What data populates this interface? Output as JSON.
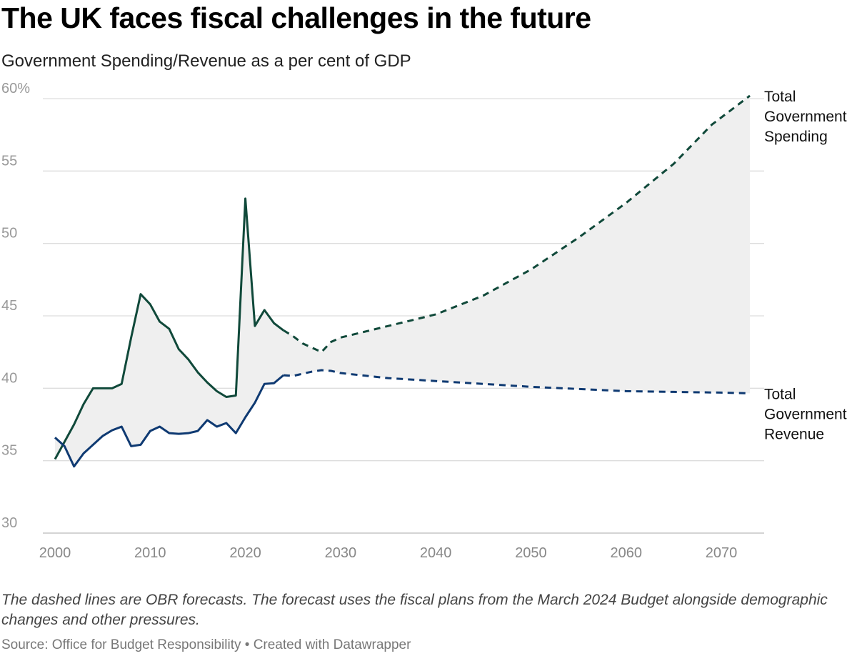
{
  "chart_data": {
    "type": "line",
    "title": "The UK faces fiscal challenges in the future",
    "subtitle": "Government Spending/Revenue as a per cent of GDP",
    "xlabel": "",
    "ylabel": "",
    "xlim": [
      2000,
      2073
    ],
    "ylim": [
      30,
      60
    ],
    "x_ticks": [
      "2000",
      "2010",
      "2020",
      "2030",
      "2040",
      "2050",
      "2060",
      "2070"
    ],
    "y_ticks": [
      "60%",
      "55",
      "50",
      "45",
      "40",
      "35",
      "30"
    ],
    "grid": true,
    "forecast_from": 2024,
    "colors": {
      "spending": "#10493a",
      "revenue": "#0f3a72",
      "fill": "#efefef",
      "grid": "#dddddd"
    },
    "series": [
      {
        "name": "Total Government Spending",
        "label_lines": [
          "Total",
          "Government",
          "Spending"
        ],
        "x": [
          2000,
          2001,
          2002,
          2003,
          2004,
          2005,
          2006,
          2007,
          2008,
          2009,
          2010,
          2011,
          2012,
          2013,
          2014,
          2015,
          2016,
          2017,
          2018,
          2019,
          2020,
          2021,
          2022,
          2023,
          2024,
          2025,
          2026,
          2027,
          2028,
          2029,
          2030,
          2035,
          2040,
          2045,
          2050,
          2055,
          2060,
          2065,
          2069,
          2073
        ],
        "values": [
          35.1,
          36.3,
          37.5,
          38.9,
          40.0,
          40.0,
          40.0,
          40.3,
          43.5,
          46.5,
          45.8,
          44.6,
          44.1,
          42.7,
          42.0,
          41.1,
          40.4,
          39.8,
          39.4,
          39.5,
          53.1,
          44.3,
          45.4,
          44.5,
          44.0,
          43.6,
          43.1,
          42.8,
          42.5,
          43.2,
          43.5,
          44.3,
          45.1,
          46.4,
          48.2,
          50.4,
          52.8,
          55.5,
          58.2,
          60.2
        ]
      },
      {
        "name": "Total Government Revenue",
        "label_lines": [
          "Total",
          "Government",
          "Revenue"
        ],
        "x": [
          2000,
          2001,
          2002,
          2003,
          2004,
          2005,
          2006,
          2007,
          2008,
          2009,
          2010,
          2011,
          2012,
          2013,
          2014,
          2015,
          2016,
          2017,
          2018,
          2019,
          2020,
          2021,
          2022,
          2023,
          2024,
          2025,
          2026,
          2027,
          2028,
          2029,
          2030,
          2035,
          2040,
          2045,
          2050,
          2055,
          2060,
          2065,
          2070,
          2073
        ],
        "values": [
          36.6,
          36.0,
          34.6,
          35.5,
          36.1,
          36.7,
          37.1,
          37.35,
          36.0,
          36.1,
          37.05,
          37.35,
          36.9,
          36.85,
          36.9,
          37.05,
          37.8,
          37.35,
          37.6,
          36.9,
          38.0,
          39.0,
          40.3,
          40.35,
          40.9,
          40.85,
          41.0,
          41.15,
          41.25,
          41.2,
          41.05,
          40.7,
          40.5,
          40.3,
          40.1,
          39.95,
          39.8,
          39.75,
          39.7,
          39.65
        ]
      }
    ]
  },
  "notes": "The dashed lines are OBR forecasts. The forecast uses the fiscal plans from the March 2024 Budget alongside demographic changes and other pressures.",
  "source": "Source: Office for Budget Responsibility • Created with Datawrapper"
}
